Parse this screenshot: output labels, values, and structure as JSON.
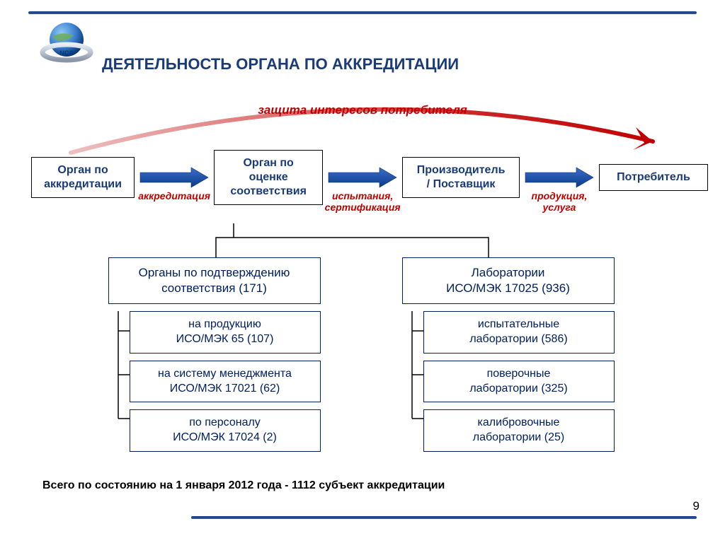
{
  "title": "ДЕЯТЕЛЬНОСТЬ ОРГАНА ПО АККРЕДИТАЦИИ",
  "title_fontsize": 22,
  "title_color": "#1a3a7a",
  "arc_label": "защита интересов потребителя",
  "arc_label_fontsize": 17,
  "arc_color": "#c00000",
  "flow": {
    "boxes": [
      {
        "label": "Орган по\nаккредитации",
        "width": 148
      },
      {
        "label": "Орган по\nоценке\nсоответствия",
        "width": 156
      },
      {
        "label": "Производитель\n/ Поставщик",
        "width": 168
      },
      {
        "label": "Потребитель",
        "width": 156
      }
    ],
    "box_fontsize": 16,
    "box_border_color": "#000000",
    "box_text_color": "#1a3a7a",
    "arrows": [
      {
        "caption": "аккредитация",
        "color": "#c00000",
        "fontsize": 14,
        "width": 100
      },
      {
        "caption": "испытания,\nсертификация",
        "color": "#c00000",
        "fontsize": 14,
        "width": 100
      },
      {
        "caption": "продукция,\nуслуга",
        "color": "#c00000",
        "fontsize": 14,
        "width": 100
      }
    ],
    "arrow_fill_start": "#3a6fc8",
    "arrow_fill_end": "#0a3a8a"
  },
  "tree": {
    "connector_color": "#000000",
    "parent_border": "#002060",
    "parent_text_color": "#002060",
    "parent_fontsize": 17,
    "child_fontsize": 16,
    "left": {
      "label": "Органы по подтверждению\nсоответствия (171)",
      "children": [
        "на продукцию\nИСО/МЭК 65 (107)",
        "на систему менеджмента\nИСО/МЭК 17021 (62)",
        "по персоналу\nИСО/МЭК 17024 (2)"
      ]
    },
    "right": {
      "label": "Лаборатории\nИСО/МЭК 17025 (936)",
      "children": [
        "испытательные\nлаборатории (586)",
        "поверочные\nлаборатории (325)",
        "калибровочные\nлаборатории (25)"
      ]
    }
  },
  "footer": "Всего по состоянию на 1 января 2012 года - 1112 субъект аккредитации",
  "footer_fontsize": 16,
  "page_number": "9",
  "page_number_fontsize": 17,
  "bar_color": "#1a3a7a",
  "logo_globe_blue": "#3a7fcf",
  "logo_globe_dark": "#0a3a7a",
  "logo_ring_silver": "#b8c2d0"
}
